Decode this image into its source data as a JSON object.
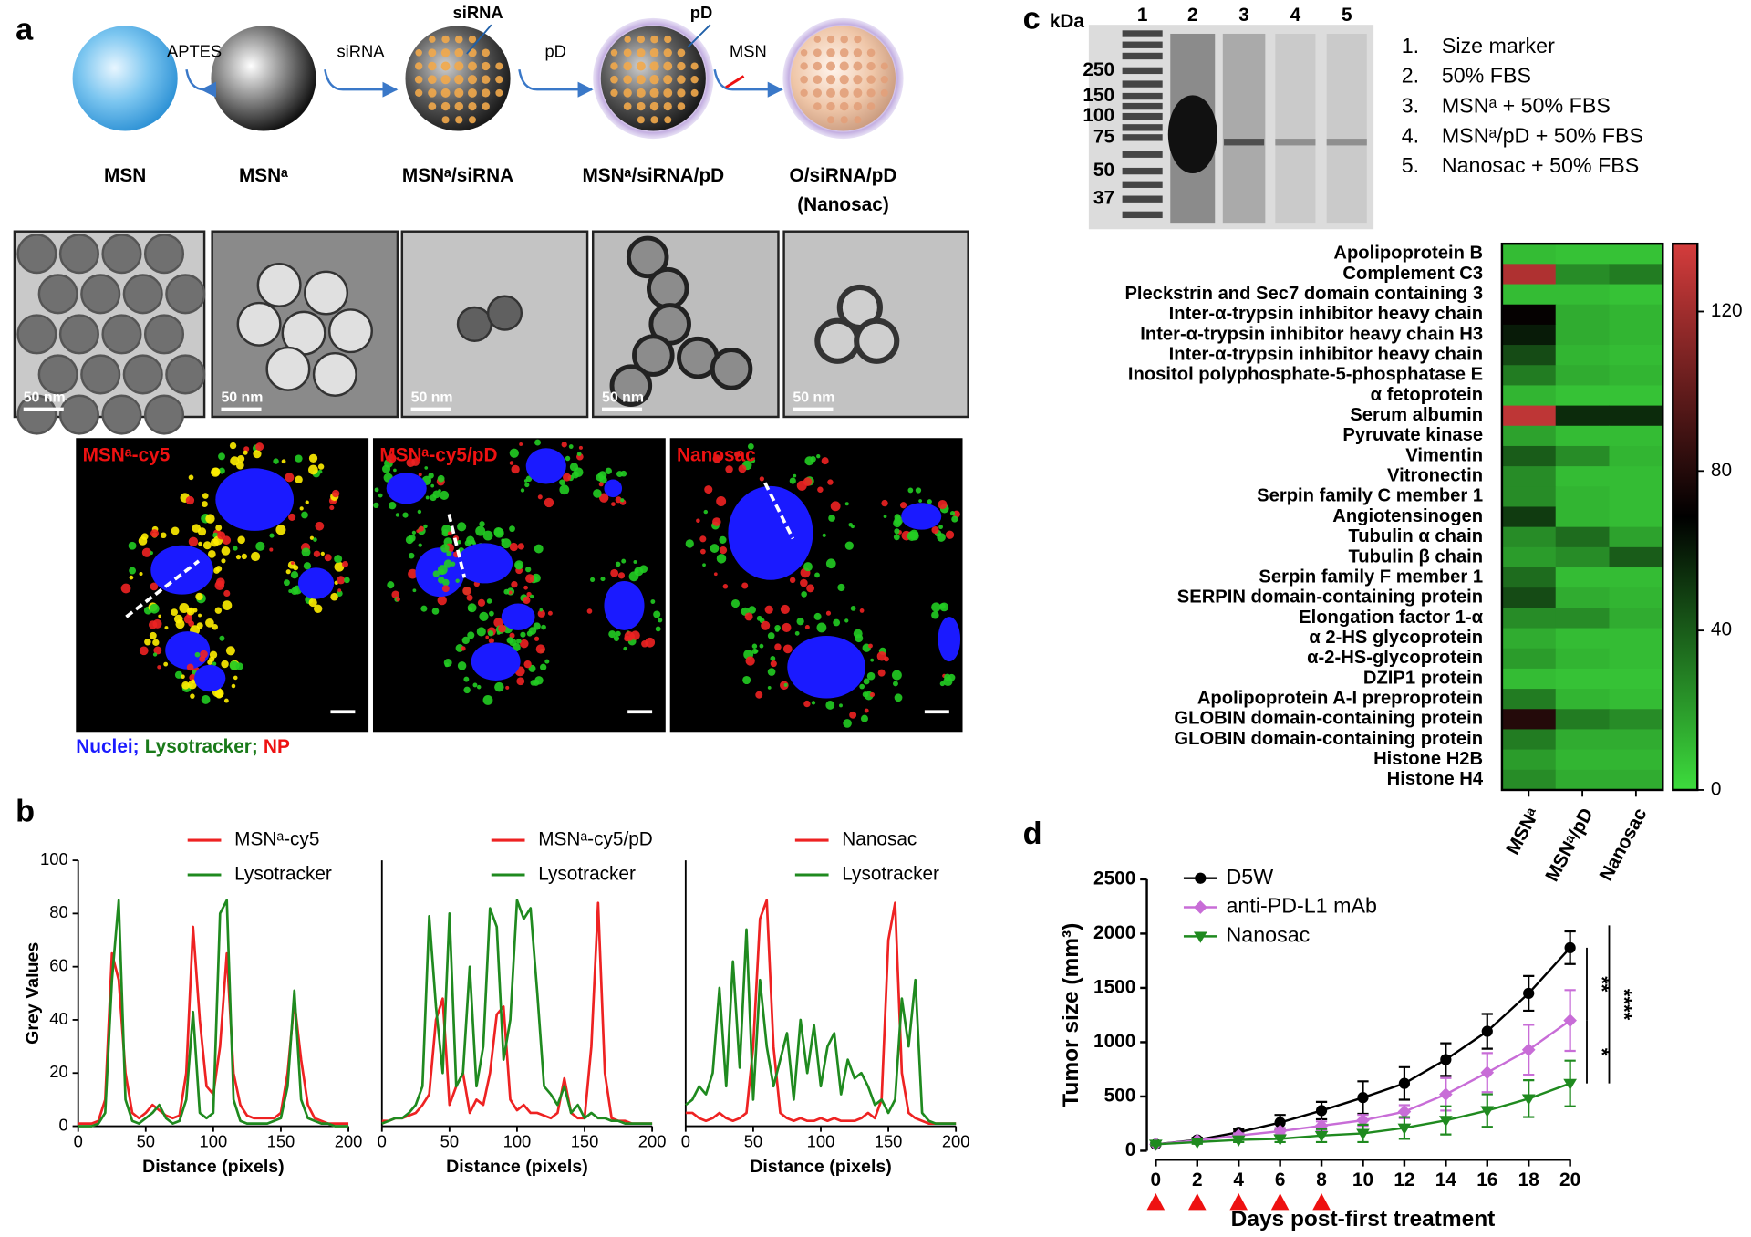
{
  "panel_labels": [
    "a",
    "b",
    "c",
    "d"
  ],
  "schematic": {
    "steps": [
      {
        "label": [
          "MSN"
        ]
      },
      {
        "label": [
          "MSNᵃ"
        ]
      },
      {
        "label": [
          "MSNᵃ/siRNA"
        ]
      },
      {
        "label": [
          "MSNᵃ/siRNA/pD"
        ]
      },
      {
        "label": [
          "O/siRNA/pD",
          "(Nanosac)"
        ]
      }
    ],
    "arrows": [
      "APTES",
      "siRNA",
      "pD",
      "MSN"
    ],
    "callouts": [
      "siRNA",
      "pD"
    ]
  },
  "tem": {
    "scale_bars": [
      "50 nm",
      "50 nm",
      "50 nm",
      "50 nm",
      "50 nm"
    ]
  },
  "microscopy": {
    "panels": [
      "MSNᵃ-cy5",
      "MSNᵃ-cy5/pD",
      "Nanosac"
    ],
    "legend": [
      {
        "text": "Nuclei;",
        "color": "#1a1aff"
      },
      {
        "text": "Lysotracker;",
        "color": "#1a7a1a"
      },
      {
        "text": "NP",
        "color": "#ee1111"
      }
    ]
  },
  "gel": {
    "unit": "kDa",
    "lanes": [
      "1",
      "2",
      "3",
      "4",
      "5"
    ],
    "markers": [
      "250",
      "150",
      "100",
      "75",
      "50",
      "37"
    ],
    "legend": [
      {
        "number": "1.",
        "text": "Size marker"
      },
      {
        "number": "2.",
        "text": "50% FBS"
      },
      {
        "number": "3.",
        "text": "MSNᵃ + 50% FBS"
      },
      {
        "number": "4.",
        "text": "MSNᵃ/pD + 50% FBS"
      },
      {
        "number": "5.",
        "text": "Nanosac + 50% FBS"
      }
    ]
  },
  "chart_data": [
    {
      "type": "line",
      "xlabel": "Distance (pixels)",
      "ylabel": "Grey Values",
      "xlim": [
        0,
        200
      ],
      "xticks": [
        0,
        50,
        100,
        150,
        200
      ],
      "ylim": [
        0,
        100
      ],
      "yticks": [
        0,
        20,
        40,
        60,
        80,
        100
      ],
      "x": [
        0,
        5,
        10,
        15,
        20,
        25,
        30,
        35,
        40,
        45,
        50,
        55,
        60,
        65,
        70,
        75,
        80,
        85,
        90,
        95,
        100,
        105,
        110,
        115,
        120,
        125,
        130,
        135,
        140,
        145,
        150,
        155,
        160,
        165,
        170,
        175,
        180,
        185,
        190,
        195,
        200
      ],
      "series": [
        {
          "name": "MSNᵃ-cy5",
          "color": "#ee2222",
          "values": [
            1,
            1,
            1,
            2,
            10,
            65,
            55,
            20,
            5,
            3,
            5,
            8,
            6,
            4,
            3,
            4,
            20,
            75,
            40,
            15,
            12,
            30,
            65,
            20,
            8,
            4,
            3,
            3,
            3,
            3,
            5,
            20,
            47,
            25,
            8,
            3,
            2,
            1,
            1,
            1,
            1
          ]
        },
        {
          "name": "Lysotracker",
          "color": "#1f8a1f",
          "values": [
            0,
            0,
            0,
            1,
            5,
            55,
            85,
            10,
            2,
            1,
            3,
            5,
            8,
            3,
            1,
            2,
            10,
            43,
            5,
            3,
            5,
            80,
            85,
            10,
            2,
            1,
            1,
            1,
            1,
            2,
            3,
            15,
            51,
            10,
            3,
            2,
            1,
            1,
            0,
            0,
            0
          ]
        }
      ]
    },
    {
      "type": "line",
      "xlabel": "Distance (pixels)",
      "xlim": [
        0,
        200
      ],
      "xticks": [
        0,
        50,
        100,
        150,
        200
      ],
      "ylim": [
        0,
        100
      ],
      "x": [
        0,
        5,
        10,
        15,
        20,
        25,
        30,
        35,
        40,
        45,
        50,
        55,
        60,
        65,
        70,
        75,
        80,
        85,
        90,
        95,
        100,
        105,
        110,
        115,
        120,
        125,
        130,
        135,
        140,
        145,
        150,
        155,
        160,
        165,
        170,
        175,
        180,
        185,
        190,
        195,
        200
      ],
      "series": [
        {
          "name": "MSNᵃ-cy5/pD",
          "color": "#ee2222",
          "values": [
            2,
            2,
            3,
            3,
            4,
            5,
            8,
            12,
            40,
            48,
            8,
            15,
            20,
            5,
            10,
            8,
            20,
            42,
            45,
            10,
            6,
            8,
            5,
            5,
            4,
            3,
            5,
            18,
            5,
            3,
            3,
            30,
            84,
            20,
            3,
            2,
            2,
            1,
            1,
            1,
            1
          ]
        },
        {
          "name": "Lysotracker",
          "color": "#1f8a1f",
          "values": [
            1,
            2,
            3,
            3,
            5,
            8,
            15,
            79,
            45,
            20,
            80,
            15,
            20,
            60,
            15,
            30,
            82,
            75,
            25,
            40,
            85,
            78,
            82,
            50,
            15,
            12,
            8,
            15,
            5,
            8,
            3,
            5,
            3,
            3,
            2,
            2,
            1,
            1,
            1,
            1,
            1
          ]
        }
      ]
    },
    {
      "type": "line",
      "xlabel": "Distance (pixels)",
      "xlim": [
        0,
        200
      ],
      "xticks": [
        0,
        50,
        100,
        150,
        200
      ],
      "ylim": [
        0,
        100
      ],
      "x": [
        0,
        5,
        10,
        15,
        20,
        25,
        30,
        35,
        40,
        45,
        50,
        55,
        60,
        65,
        70,
        75,
        80,
        85,
        90,
        95,
        100,
        105,
        110,
        115,
        120,
        125,
        130,
        135,
        140,
        145,
        150,
        155,
        160,
        165,
        170,
        175,
        180,
        185,
        190,
        195,
        200
      ],
      "series": [
        {
          "name": "Nanosac",
          "color": "#ee2222",
          "values": [
            5,
            5,
            3,
            2,
            3,
            5,
            3,
            2,
            3,
            5,
            30,
            78,
            85,
            30,
            5,
            3,
            2,
            3,
            2,
            2,
            3,
            2,
            3,
            2,
            2,
            2,
            3,
            5,
            3,
            10,
            70,
            84,
            20,
            5,
            3,
            2,
            1,
            1,
            1,
            1,
            1
          ]
        },
        {
          "name": "Lysotracker",
          "color": "#1f8a1f",
          "values": [
            8,
            10,
            15,
            12,
            20,
            52,
            15,
            62,
            22,
            74,
            10,
            55,
            30,
            15,
            25,
            35,
            10,
            40,
            20,
            38,
            15,
            30,
            35,
            12,
            25,
            18,
            20,
            15,
            8,
            10,
            5,
            10,
            48,
            30,
            55,
            5,
            2,
            1,
            1,
            1,
            1
          ]
        }
      ]
    },
    {
      "type": "heatmap",
      "rows": [
        "Apolipoprotein B",
        "Complement C3",
        "Pleckstrin and Sec7 domain containing 3",
        "Inter-α-trypsin inhibitor heavy chain",
        "Inter-α-trypsin inhibitor heavy chain H3",
        "Inter-α-trypsin inhibitor heavy chain",
        "Inositol polyphosphate-5-phosphatase E",
        "α fetoprotein",
        "Serum albumin",
        "Pyruvate kinase",
        "Vimentin",
        "Vitronectin",
        "Serpin family C member 1",
        "Angiotensinogen",
        "Tubulin α chain",
        "Tubulin β chain",
        "Serpin family F member 1",
        "SERPIN domain-containing protein",
        "Elongation factor 1-α",
        "α 2-HS glycoprotein",
        "α-2-HS-glycoprotein",
        "DZIP1 protein",
        "Apolipoprotein A-I preproprotein",
        "GLOBIN domain-containing protein",
        "GLOBIN domain-containing protein",
        "Histone H2B",
        "Histone H4"
      ],
      "columns": [
        "MSNᵃ",
        "MSNᵃ/pD",
        "Nanosac"
      ],
      "values": [
        [
          10,
          8,
          8
        ],
        [
          125,
          25,
          30
        ],
        [
          10,
          10,
          8
        ],
        [
          70,
          15,
          12
        ],
        [
          60,
          15,
          12
        ],
        [
          45,
          12,
          10
        ],
        [
          30,
          15,
          12
        ],
        [
          12,
          8,
          8
        ],
        [
          130,
          55,
          55
        ],
        [
          18,
          10,
          10
        ],
        [
          40,
          25,
          12
        ],
        [
          25,
          10,
          10
        ],
        [
          25,
          12,
          10
        ],
        [
          50,
          12,
          10
        ],
        [
          25,
          35,
          18
        ],
        [
          20,
          25,
          40
        ],
        [
          35,
          10,
          10
        ],
        [
          45,
          15,
          12
        ],
        [
          25,
          25,
          15
        ],
        [
          15,
          10,
          10
        ],
        [
          20,
          12,
          10
        ],
        [
          10,
          8,
          8
        ],
        [
          30,
          12,
          10
        ],
        [
          80,
          30,
          25
        ],
        [
          30,
          15,
          15
        ],
        [
          20,
          12,
          12
        ],
        [
          25,
          15,
          15
        ]
      ],
      "clim": [
        0,
        137
      ],
      "cticks": [
        0,
        40,
        80,
        120
      ],
      "colormap": [
        "#3ddc3d",
        "#000000",
        "#d43c3c"
      ]
    },
    {
      "type": "errorline",
      "xlabel": "Days post-first treatment",
      "ylabel": "Tumor size (mm³)",
      "xlim": [
        0,
        20
      ],
      "xticks": [
        0,
        2,
        4,
        6,
        8,
        10,
        12,
        14,
        16,
        18,
        20
      ],
      "ylim": [
        0,
        2500
      ],
      "yticks": [
        0,
        500,
        1000,
        1500,
        2000,
        2500
      ],
      "x": [
        0,
        2,
        4,
        6,
        8,
        10,
        12,
        14,
        16,
        18,
        20
      ],
      "series": [
        {
          "name": "D5W",
          "color": "#000000",
          "marker": "circle",
          "values": [
            60,
            100,
            170,
            260,
            370,
            490,
            620,
            840,
            1100,
            1450,
            1870
          ],
          "errors": [
            10,
            20,
            30,
            70,
            80,
            150,
            150,
            150,
            160,
            160,
            150
          ]
        },
        {
          "name": "anti-PD-L1 mAb",
          "color": "#c86dd7",
          "marker": "diamond",
          "values": [
            60,
            95,
            140,
            180,
            230,
            280,
            360,
            520,
            720,
            930,
            1200
          ],
          "errors": [
            10,
            15,
            20,
            30,
            40,
            50,
            60,
            150,
            180,
            230,
            280
          ]
        },
        {
          "name": "Nanosac",
          "color": "#1f8a1f",
          "marker": "triangle-down",
          "values": [
            60,
            80,
            100,
            110,
            140,
            160,
            210,
            280,
            370,
            480,
            620
          ],
          "errors": [
            10,
            15,
            20,
            30,
            60,
            80,
            100,
            130,
            150,
            170,
            210
          ]
        }
      ],
      "significance": [
        "**",
        "****",
        "*"
      ],
      "treatment_days": [
        0,
        2,
        4,
        6,
        8
      ],
      "treatment_color": "#ee1111"
    }
  ]
}
